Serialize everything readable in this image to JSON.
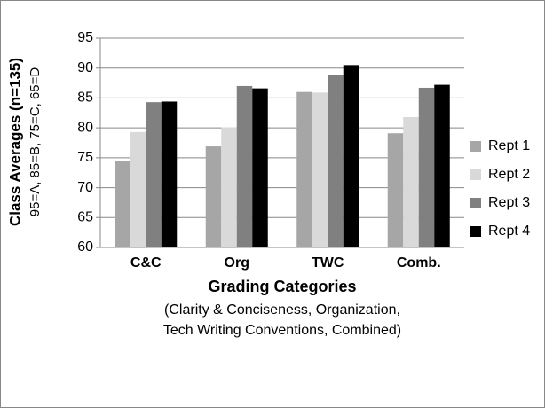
{
  "chart_data": {
    "type": "bar",
    "y_label": "Class Averages (n=135)",
    "y_sublabel": "95=A, 85=B, 75=C, 65=D",
    "x_label": "Grading Categories",
    "x_sublabel": [
      "(Clarity & Conciseness, Organization,",
      "Tech Writing Conventions, Combined)"
    ],
    "categories": [
      "C&C",
      "Org",
      "TWC",
      "Comb."
    ],
    "series": [
      {
        "name": "Rept 1",
        "color": "#a6a6a6",
        "values": [
          74.5,
          76.9,
          86.0,
          79.1
        ]
      },
      {
        "name": "Rept 2",
        "color": "#d9d9d9",
        "values": [
          79.3,
          80.1,
          85.9,
          81.8
        ]
      },
      {
        "name": "Rept 3",
        "color": "#808080",
        "values": [
          84.3,
          87.0,
          88.9,
          86.7
        ]
      },
      {
        "name": "Rept 4",
        "color": "#000000",
        "values": [
          84.4,
          86.6,
          90.5,
          87.2
        ]
      }
    ],
    "ylim": [
      60,
      95
    ],
    "yticks": [
      60,
      65,
      70,
      75,
      80,
      85,
      90,
      95
    ],
    "grid": true,
    "legend": "right"
  }
}
